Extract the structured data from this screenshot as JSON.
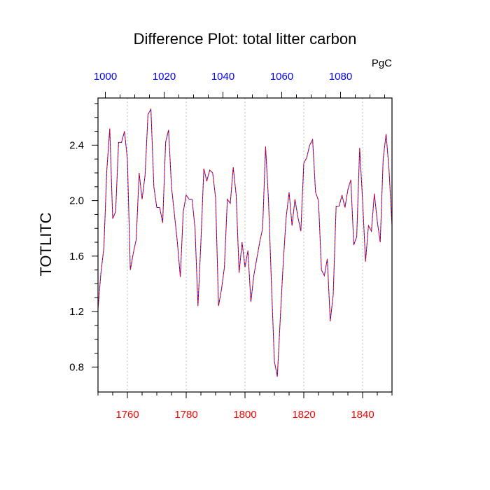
{
  "chart_data": {
    "type": "line",
    "title": "Difference Plot: total litter carbon",
    "units": "PgC",
    "ylabel": "TOTLITC",
    "xlabel": "",
    "xlim": [
      1750,
      1850
    ],
    "ylim": [
      0.62,
      2.74
    ],
    "top_axis_range": [
      997.5,
      1097.5
    ],
    "grid": "vertical dashed lines at bottom major ticks",
    "x_ticks": [
      1760,
      1780,
      1800,
      1820,
      1840
    ],
    "y_ticks": [
      0.8,
      1.2,
      1.6,
      2.0,
      2.4
    ],
    "top_ticks": [
      1000,
      1020,
      1040,
      1060,
      1080
    ],
    "x_tick_labels": [
      "1760",
      "1780",
      "1800",
      "1820",
      "1840"
    ],
    "y_tick_labels": [
      "0.8",
      "1.2",
      "1.6",
      "2.0",
      "2.4"
    ],
    "top_tick_labels": [
      "1000",
      "1020",
      "1040",
      "1060",
      "1080"
    ],
    "colors": {
      "bottom_axis_labels": "#ff0000",
      "top_axis_labels": "#0000ff",
      "series_a": "#0000ff",
      "series_b": "#ff0000"
    },
    "series": [
      {
        "name": "dashed-blue",
        "style": "dashed",
        "x": [
          1750,
          1751,
          1752,
          1753,
          1754,
          1755,
          1756,
          1757,
          1758,
          1759,
          1760,
          1761,
          1762,
          1763,
          1764,
          1765,
          1766,
          1767,
          1768,
          1769,
          1770,
          1771,
          1772,
          1773,
          1774,
          1775,
          1776,
          1777,
          1778,
          1779,
          1780,
          1781,
          1782,
          1783,
          1784,
          1785,
          1786,
          1787,
          1788,
          1789,
          1790,
          1791,
          1792,
          1793,
          1794,
          1795,
          1796,
          1797,
          1798,
          1799,
          1800,
          1801,
          1802,
          1803,
          1804,
          1805,
          1806,
          1807,
          1808,
          1809,
          1810,
          1811,
          1812,
          1813,
          1814,
          1815,
          1816,
          1817,
          1818,
          1819,
          1820,
          1821,
          1822,
          1823,
          1824,
          1825,
          1826,
          1827,
          1828,
          1829,
          1830,
          1831,
          1832,
          1833,
          1834,
          1835,
          1836,
          1837,
          1838,
          1839,
          1840,
          1841,
          1842,
          1843,
          1844,
          1845,
          1846,
          1847,
          1848,
          1849,
          1850
        ],
        "values": [
          1.22,
          1.48,
          1.66,
          2.22,
          2.52,
          1.87,
          1.92,
          2.42,
          2.42,
          2.5,
          2.3,
          1.5,
          1.62,
          1.72,
          2.2,
          2.01,
          2.18,
          2.62,
          2.66,
          2.1,
          1.95,
          1.95,
          1.84,
          2.42,
          2.51,
          2.1,
          1.9,
          1.7,
          1.45,
          1.92,
          2.04,
          2.01,
          2.01,
          1.8,
          1.24,
          1.7,
          2.23,
          2.14,
          2.22,
          2.2,
          2.02,
          1.24,
          1.36,
          1.52,
          2.01,
          1.98,
          2.24,
          2.04,
          1.48,
          1.7,
          1.52,
          1.64,
          1.27,
          1.46,
          1.58,
          1.7,
          1.8,
          2.39,
          2.0,
          1.4,
          0.84,
          0.73,
          1.15,
          1.55,
          1.88,
          2.06,
          1.82,
          2.01,
          1.88,
          1.78,
          2.27,
          2.31,
          2.4,
          2.44,
          2.06,
          2.0,
          1.5,
          1.46,
          1.58,
          1.13,
          1.32,
          1.96,
          1.96,
          2.04,
          1.95,
          2.08,
          2.15,
          1.68,
          1.74,
          2.38,
          2.0,
          1.56,
          1.82,
          1.78,
          2.05,
          1.85,
          1.7,
          2.3,
          2.48,
          2.22,
          1.82
        ]
      },
      {
        "name": "dashed-red",
        "style": "dashed",
        "x": [
          1750,
          1751,
          1752,
          1753,
          1754,
          1755,
          1756,
          1757,
          1758,
          1759,
          1760,
          1761,
          1762,
          1763,
          1764,
          1765,
          1766,
          1767,
          1768,
          1769,
          1770,
          1771,
          1772,
          1773,
          1774,
          1775,
          1776,
          1777,
          1778,
          1779,
          1780,
          1781,
          1782,
          1783,
          1784,
          1785,
          1786,
          1787,
          1788,
          1789,
          1790,
          1791,
          1792,
          1793,
          1794,
          1795,
          1796,
          1797,
          1798,
          1799,
          1800,
          1801,
          1802,
          1803,
          1804,
          1805,
          1806,
          1807,
          1808,
          1809,
          1810,
          1811,
          1812,
          1813,
          1814,
          1815,
          1816,
          1817,
          1818,
          1819,
          1820,
          1821,
          1822,
          1823,
          1824,
          1825,
          1826,
          1827,
          1828,
          1829,
          1830,
          1831,
          1832,
          1833,
          1834,
          1835,
          1836,
          1837,
          1838,
          1839,
          1840,
          1841,
          1842,
          1843,
          1844,
          1845,
          1846,
          1847,
          1848,
          1849,
          1850
        ],
        "values": [
          1.22,
          1.48,
          1.66,
          2.22,
          2.52,
          1.87,
          1.92,
          2.42,
          2.42,
          2.5,
          2.3,
          1.5,
          1.62,
          1.72,
          2.2,
          2.01,
          2.18,
          2.62,
          2.66,
          2.1,
          1.95,
          1.95,
          1.84,
          2.42,
          2.51,
          2.1,
          1.9,
          1.7,
          1.45,
          1.92,
          2.04,
          2.01,
          2.01,
          1.8,
          1.24,
          1.7,
          2.23,
          2.14,
          2.22,
          2.2,
          2.02,
          1.24,
          1.36,
          1.52,
          2.01,
          1.98,
          2.24,
          2.04,
          1.48,
          1.7,
          1.52,
          1.64,
          1.27,
          1.46,
          1.58,
          1.7,
          1.8,
          2.39,
          2.0,
          1.4,
          0.84,
          0.73,
          1.15,
          1.55,
          1.88,
          2.06,
          1.82,
          2.01,
          1.88,
          1.78,
          2.27,
          2.31,
          2.4,
          2.44,
          2.06,
          2.0,
          1.5,
          1.46,
          1.58,
          1.13,
          1.32,
          1.96,
          1.96,
          2.04,
          1.95,
          2.08,
          2.15,
          1.68,
          1.74,
          2.38,
          2.0,
          1.56,
          1.82,
          1.78,
          2.05,
          1.85,
          1.7,
          2.3,
          2.48,
          2.22,
          1.82
        ]
      }
    ]
  }
}
